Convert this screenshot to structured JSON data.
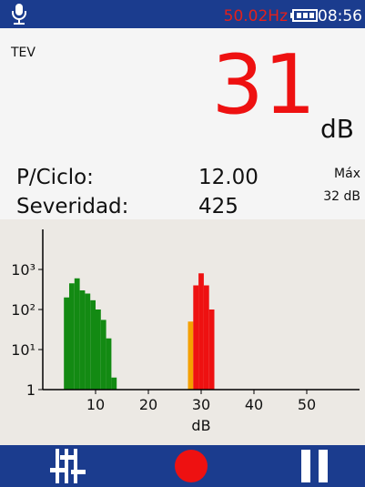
{
  "status_bar": {
    "frequency": "50.02Hz",
    "time": "08:56"
  },
  "mode": "TEV",
  "reading": {
    "value": "31",
    "unit": "dB"
  },
  "stats": {
    "p_ciclo_label": "P/Ciclo:",
    "p_ciclo_value": "12.00",
    "severidad_label": "Severidad:",
    "severidad_value": "425",
    "max_label": "Máx",
    "max_value": "32 dB"
  },
  "chart_data": {
    "type": "histogram",
    "xlabel": "dB",
    "log_y": true,
    "xlim": [
      0,
      60
    ],
    "xticks": [
      10,
      20,
      30,
      40,
      50
    ],
    "ylim": [
      1,
      10000
    ],
    "yticks": [
      1,
      {
        "value": 10,
        "label": "10¹"
      },
      {
        "value": 100,
        "label": "10²"
      },
      {
        "value": 1000,
        "label": "10³"
      }
    ],
    "series": [
      {
        "color": "#138a13",
        "bins": [
          4,
          5,
          6,
          7,
          8,
          9,
          10,
          11,
          12,
          13,
          14
        ],
        "values": [
          200,
          450,
          600,
          300,
          250,
          170,
          100,
          55,
          19,
          2
        ]
      },
      {
        "color": "#f5a000",
        "bins": [
          27.5,
          28.5
        ],
        "values": [
          50
        ]
      },
      {
        "color": "#ee1111",
        "bins": [
          28.5,
          29.5,
          30.5,
          31.5,
          32.5
        ],
        "values": [
          400,
          800,
          400,
          100
        ]
      }
    ]
  }
}
